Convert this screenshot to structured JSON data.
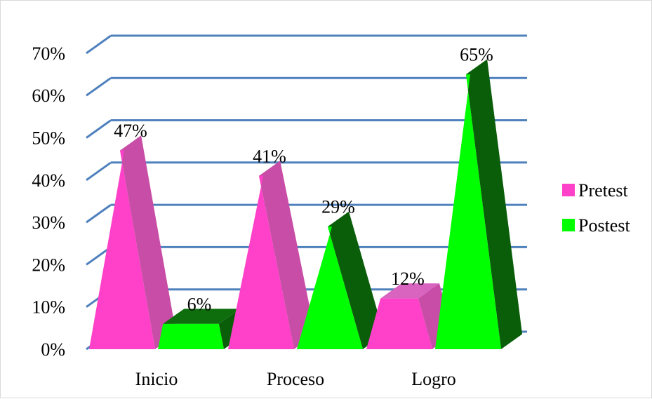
{
  "chart_data": {
    "type": "bar",
    "style": "3d-pyramid",
    "title": "",
    "xlabel": "",
    "ylabel": "",
    "categories": [
      "Inicio",
      "Proceso",
      "Logro"
    ],
    "series": [
      {
        "name": "Pretest",
        "values": [
          47,
          41,
          12
        ],
        "color": "#ff40c8",
        "side_color": "#c84da6",
        "top_color": "#d864c0"
      },
      {
        "name": "Postest",
        "values": [
          6,
          29,
          65
        ],
        "color": "#00ff00",
        "side_color": "#0a5e0a",
        "top_color": "#0e6e0e"
      }
    ],
    "data_labels": [
      [
        "47%",
        "41%",
        "12%"
      ],
      [
        "6%",
        "29%",
        "65%"
      ]
    ],
    "ylim": [
      0,
      70
    ],
    "yticks": [
      "0%",
      "10%",
      "20%",
      "30%",
      "40%",
      "50%",
      "60%",
      "70%"
    ],
    "grid": true,
    "grid_color": "#4f81bd",
    "legend_position": "right"
  }
}
